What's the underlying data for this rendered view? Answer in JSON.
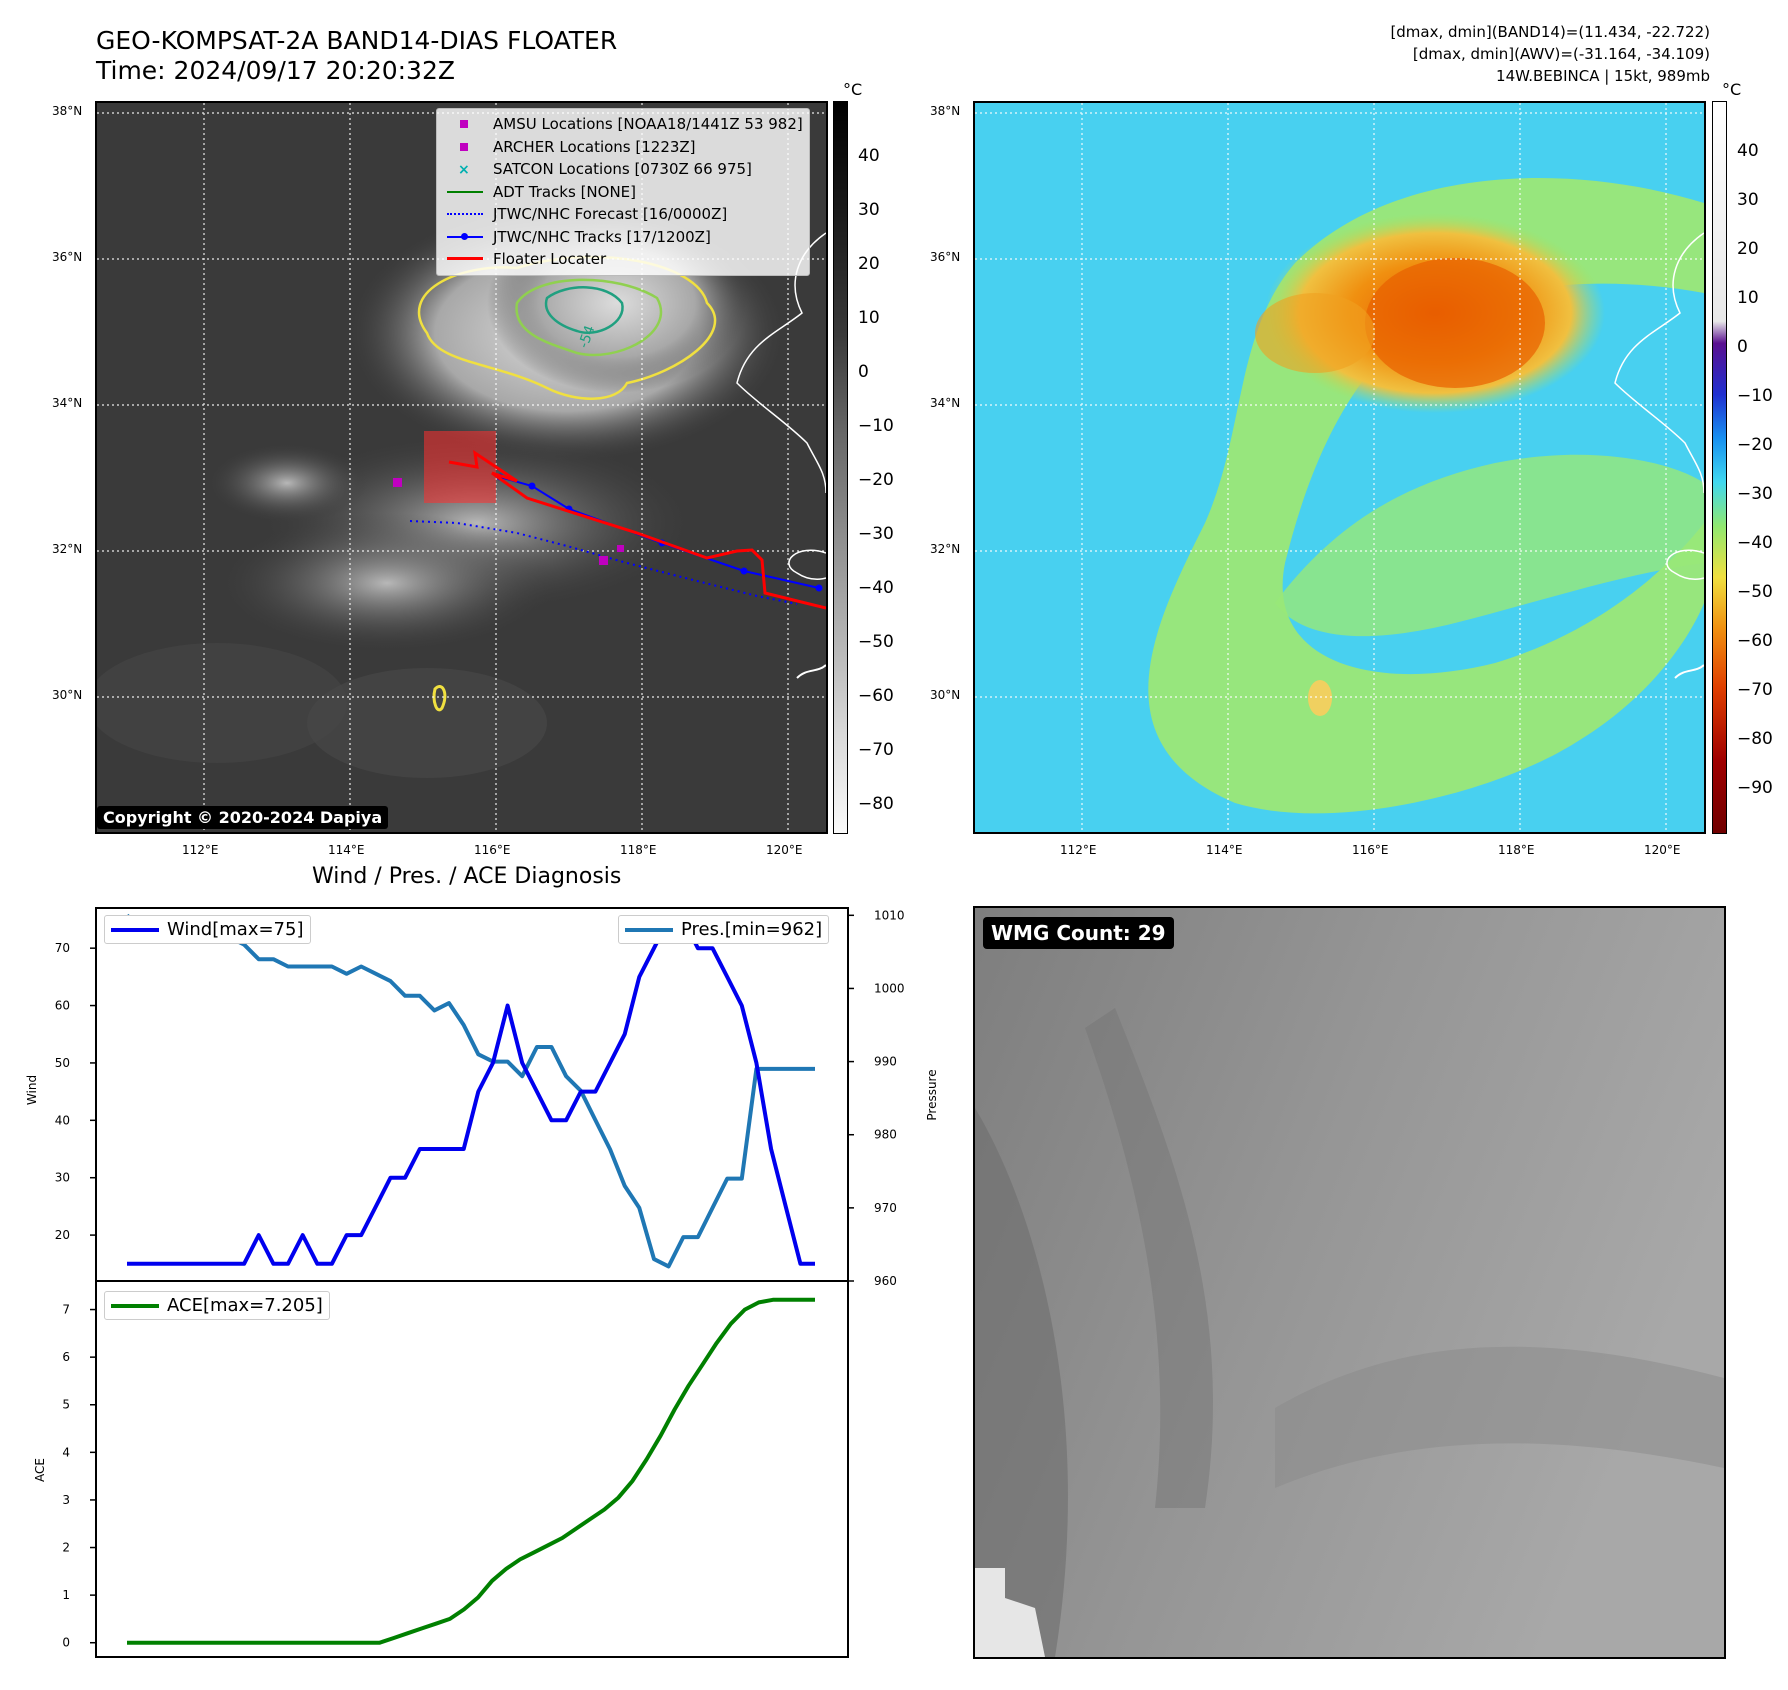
{
  "header": {
    "title": "GEO-KOMPSAT-2A BAND14-DIAS FLOATER",
    "time": "Time: 2024/09/17 20:20:32Z",
    "dmax_band14": "[dmax, dmin](BAND14)=(11.434, -22.722)",
    "dmax_awv": "[dmax, dmin](AWV)=(-31.164, -34.109)",
    "storm": "14W.BEBINCA | 15kt, 989mb"
  },
  "ir_map": {
    "lat_labels": [
      "38°N",
      "36°N",
      "34°N",
      "32°N",
      "30°N"
    ],
    "lon_labels": [
      "112°E",
      "114°E",
      "116°E",
      "118°E",
      "120°E"
    ],
    "copyright": "Copyright © 2020-2024 Dapiya",
    "contour_label": "-54",
    "legend": [
      {
        "label": "AMSU Locations [NOAA18/1441Z 53 982]",
        "color": "#c000c0",
        "symbol": "square"
      },
      {
        "label": "ARCHER Locations [1223Z]",
        "color": "#c000c0",
        "symbol": "square"
      },
      {
        "label": "SATCON Locations [0730Z 66 975]",
        "color": "#00b0b0",
        "symbol": "x"
      },
      {
        "label": "ADT Tracks [NONE]",
        "color": "#008000",
        "symbol": "line"
      },
      {
        "label": "JTWC/NHC Forecast [16/0000Z]",
        "color": "#0000ff",
        "symbol": "dotted"
      },
      {
        "label": "JTWC/NHC Tracks [17/1200Z]",
        "color": "#0000ff",
        "symbol": "line-dot"
      },
      {
        "label": "Floater Locater",
        "color": "#ff0000",
        "symbol": "line"
      }
    ],
    "colorbar": {
      "unit": "°C",
      "ticks": [
        "40",
        "30",
        "20",
        "10",
        "0",
        "−10",
        "−20",
        "−30",
        "−40",
        "−50",
        "−60",
        "−70",
        "−80"
      ]
    }
  },
  "wv_map": {
    "lat_labels": [
      "38°N",
      "36°N",
      "34°N",
      "32°N",
      "30°N"
    ],
    "lon_labels": [
      "112°E",
      "114°E",
      "116°E",
      "118°E",
      "120°E"
    ],
    "colorbar": {
      "unit": "°C",
      "ticks": [
        "40",
        "30",
        "20",
        "10",
        "0",
        "−10",
        "−20",
        "−30",
        "−40",
        "−50",
        "−60",
        "−70",
        "−80",
        "−90"
      ]
    }
  },
  "wmg": {
    "label": "WMG Count: 29"
  },
  "chart_data": [
    {
      "type": "line",
      "title": "Wind / Pres. / ACE Diagnosis",
      "ylabel": "Wind",
      "ylabel_right": "Pressure",
      "ylim": [
        12,
        77
      ],
      "ylim_right": [
        960,
        1011
      ],
      "yticks": [
        20,
        30,
        40,
        50,
        60,
        70
      ],
      "yticks_right": [
        960,
        970,
        980,
        990,
        1000,
        1010
      ],
      "series": [
        {
          "name": "Wind[max=75]",
          "axis": "left",
          "color": "#0000ee",
          "values": [
            15,
            15,
            15,
            15,
            15,
            15,
            15,
            15,
            15,
            20,
            15,
            15,
            20,
            15,
            15,
            20,
            20,
            25,
            30,
            30,
            35,
            35,
            35,
            35,
            45,
            50,
            60,
            50,
            45,
            40,
            40,
            45,
            45,
            50,
            55,
            65,
            70,
            75,
            75,
            70,
            70,
            65,
            60,
            50,
            35,
            25,
            15,
            15
          ]
        },
        {
          "name": "Pres.[min=962]",
          "axis": "right",
          "color": "#1f77b4",
          "values": [
            1010,
            1008,
            1008,
            1008,
            1009,
            1009,
            1007,
            1007,
            1006,
            1004,
            1004,
            1003,
            1003,
            1003,
            1003,
            1002,
            1003,
            1002,
            1001,
            999,
            999,
            997,
            998,
            995,
            991,
            990,
            990,
            988,
            992,
            992,
            988,
            986,
            982,
            978,
            973,
            970,
            963,
            962,
            966,
            966,
            970,
            974,
            974,
            989,
            989,
            989,
            989,
            989
          ]
        }
      ]
    },
    {
      "type": "line",
      "ylabel": "ACE",
      "ylim": [
        -0.3,
        7.6
      ],
      "yticks": [
        0,
        1,
        2,
        3,
        4,
        5,
        6,
        7
      ],
      "series": [
        {
          "name": "ACE[max=7.205]",
          "color": "#008000",
          "values": [
            0,
            0,
            0,
            0,
            0,
            0,
            0,
            0,
            0,
            0,
            0,
            0,
            0,
            0,
            0,
            0,
            0,
            0,
            0,
            0.1,
            0.2,
            0.3,
            0.4,
            0.5,
            0.7,
            0.95,
            1.3,
            1.55,
            1.75,
            1.9,
            2.05,
            2.2,
            2.4,
            2.6,
            2.8,
            3.05,
            3.4,
            3.85,
            4.35,
            4.9,
            5.4,
            5.85,
            6.3,
            6.7,
            7.0,
            7.15,
            7.205,
            7.205,
            7.205,
            7.205
          ]
        }
      ]
    }
  ]
}
